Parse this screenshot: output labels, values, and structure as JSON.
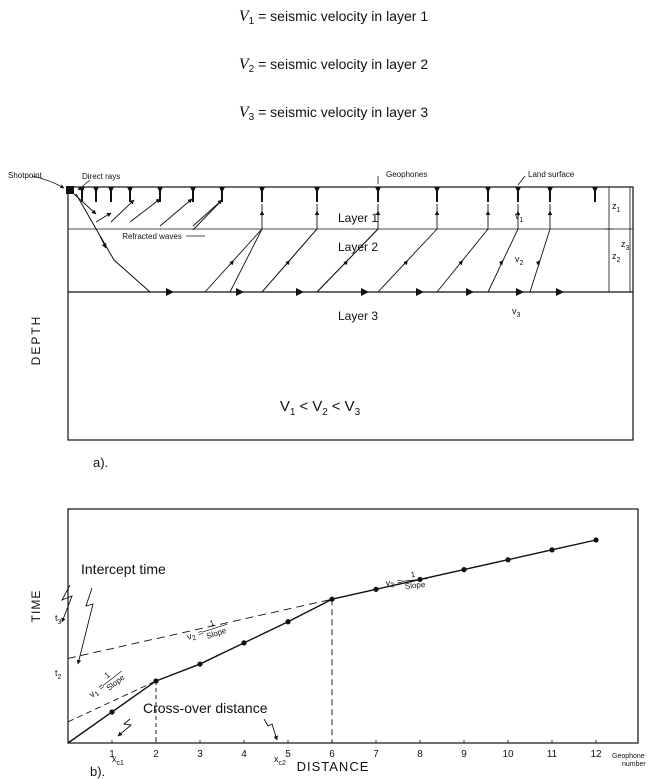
{
  "legend": [
    {
      "symbol": "V",
      "sub": "1",
      "eq": "= seismic velocity in layer 1"
    },
    {
      "symbol": "V",
      "sub": "2",
      "eq": "= seismic velocity in layer 2"
    },
    {
      "symbol": "V",
      "sub": "3",
      "eq": "= seismic velocity in layer 3"
    }
  ],
  "section": {
    "shotpoint": "Shotpoint",
    "direct_rays": "Direct rays",
    "geophones": "Geophones",
    "land_surface": "Land surface",
    "refracted_waves": "Refracted waves",
    "layer1": "Layer 1",
    "layer2": "Layer 2",
    "layer3": "Layer 3",
    "v1": "v",
    "v1_sub": "1",
    "v2": "v",
    "v2_sub": "2",
    "v3": "v",
    "v3_sub": "3",
    "z1": "z",
    "z1_sub": "1",
    "z2": "z",
    "z2_sub": "2",
    "z3": "z",
    "z3_sub": "3",
    "depth": "DEPTH",
    "inequality": "V",
    "ineq_parts": [
      "1",
      "<",
      "V",
      "2",
      "<",
      "V",
      "3"
    ],
    "caption": "a)."
  },
  "plot": {
    "ylabel": "TIME",
    "xlabel": "DISTANCE",
    "intercept": "Intercept time",
    "crossover": "Cross-over distance",
    "t2": "t",
    "t2_sub": "2",
    "t3": "t",
    "t3_sub": "3",
    "xc1": "x",
    "xc1_sub": "c1",
    "xc2": "x",
    "xc2_sub": "c2",
    "slope1": "v",
    "slope1_sub": "1",
    "slope_eq": "=",
    "one": "1",
    "slope": "Slope",
    "slope2": "v",
    "slope2_sub": "2",
    "slope3": "v",
    "slope3_sub": "3",
    "geophone_number": [
      "Geophone",
      "number"
    ],
    "ticks": [
      "1",
      "2",
      "3",
      "4",
      "5",
      "6",
      "7",
      "8",
      "9",
      "10",
      "11",
      "12"
    ],
    "caption": "b)."
  },
  "chart_data": {
    "type": "line",
    "xlabel": "DISTANCE",
    "ylabel": "TIME",
    "x": [
      0,
      1,
      2,
      3,
      4,
      5,
      6,
      7,
      8,
      9,
      10,
      11,
      12
    ],
    "y": [
      0,
      0.22,
      0.44,
      0.56,
      0.71,
      0.86,
      1.02,
      1.09,
      1.16,
      1.23,
      1.3,
      1.37,
      1.44
    ],
    "series": [
      {
        "name": "v1",
        "x": [
          0,
          1,
          2
        ],
        "y": [
          0,
          0.22,
          0.44
        ]
      },
      {
        "name": "v2",
        "x": [
          2,
          3,
          4,
          5,
          6
        ],
        "y": [
          0.44,
          0.56,
          0.71,
          0.86,
          1.02
        ]
      },
      {
        "name": "v3",
        "x": [
          6,
          7,
          8,
          9,
          10,
          11,
          12
        ],
        "y": [
          1.02,
          1.09,
          1.16,
          1.23,
          1.3,
          1.37,
          1.44
        ]
      }
    ],
    "intercept_times": {
      "t2": 0.22,
      "t3": 0.6
    },
    "crossover_distances": {
      "xc1": 2,
      "xc2": 6
    }
  }
}
